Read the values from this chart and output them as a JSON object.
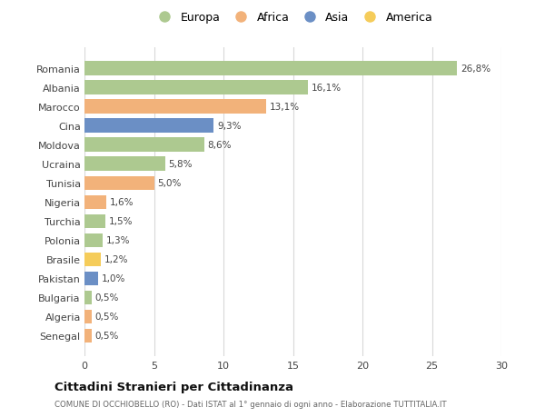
{
  "countries": [
    "Romania",
    "Albania",
    "Marocco",
    "Cina",
    "Moldova",
    "Ucraina",
    "Tunisia",
    "Nigeria",
    "Turchia",
    "Polonia",
    "Brasile",
    "Pakistan",
    "Bulgaria",
    "Algeria",
    "Senegal"
  ],
  "values": [
    26.8,
    16.1,
    13.1,
    9.3,
    8.6,
    5.8,
    5.0,
    1.6,
    1.5,
    1.3,
    1.2,
    1.0,
    0.5,
    0.5,
    0.5
  ],
  "labels": [
    "26,8%",
    "16,1%",
    "13,1%",
    "9,3%",
    "8,6%",
    "5,8%",
    "5,0%",
    "1,6%",
    "1,5%",
    "1,3%",
    "1,2%",
    "1,0%",
    "0,5%",
    "0,5%",
    "0,5%"
  ],
  "continents": [
    "Europa",
    "Europa",
    "Africa",
    "Asia",
    "Europa",
    "Europa",
    "Africa",
    "Africa",
    "Europa",
    "Europa",
    "America",
    "Asia",
    "Europa",
    "Africa",
    "Africa"
  ],
  "colors": {
    "Europa": "#adc990",
    "Africa": "#f2b27a",
    "Asia": "#6b8fc5",
    "America": "#f5cc5a"
  },
  "legend_order": [
    "Europa",
    "Africa",
    "Asia",
    "America"
  ],
  "xlim": [
    0,
    30
  ],
  "xticks": [
    0,
    5,
    10,
    15,
    20,
    25,
    30
  ],
  "title": "Cittadini Stranieri per Cittadinanza",
  "subtitle": "COMUNE DI OCCHIOBELLO (RO) - Dati ISTAT al 1° gennaio di ogni anno - Elaborazione TUTTITALIA.IT",
  "background_color": "#ffffff",
  "grid_color": "#d8d8d8"
}
